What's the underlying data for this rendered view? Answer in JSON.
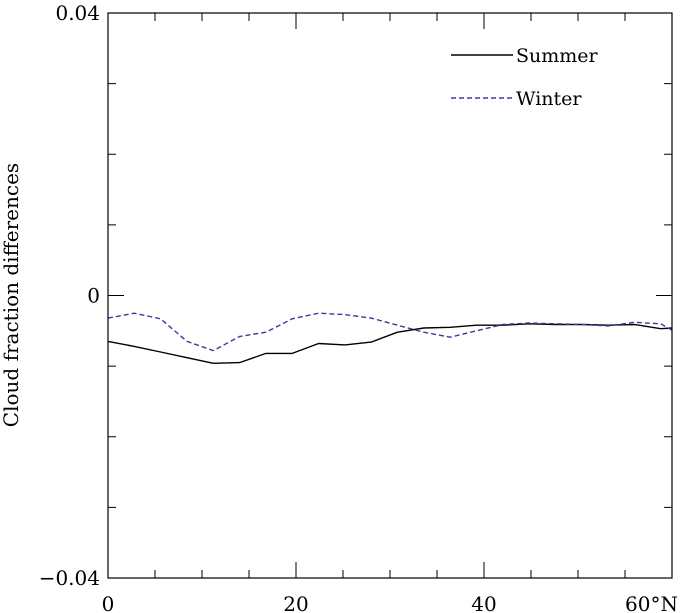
{
  "chart_data": {
    "type": "line",
    "ylabel": "Cloud fraction differences",
    "xlim": [
      0,
      60
    ],
    "ylim": [
      -0.04,
      0.04
    ],
    "x_ticks": [
      {
        "value": 0,
        "label": "0"
      },
      {
        "value": 20,
        "label": "20"
      },
      {
        "value": 40,
        "label": "40"
      },
      {
        "value": 60,
        "label": "60°N"
      }
    ],
    "y_ticks": [
      {
        "value": 0.04,
        "label": "0.04"
      },
      {
        "value": 0,
        "label": "0"
      },
      {
        "value": -0.04,
        "label": "−0.04"
      }
    ],
    "x_minor_step": 5,
    "y_minor_step": 0.01,
    "grid": false,
    "legend_position": "top-right",
    "x": [
      0,
      2.8,
      5.6,
      8.4,
      11.2,
      14.0,
      16.8,
      19.6,
      22.4,
      25.2,
      28.0,
      30.8,
      33.6,
      36.4,
      39.2,
      42.0,
      44.8,
      47.6,
      50.4,
      53.2,
      56.0,
      58.8,
      60.0
    ],
    "series": [
      {
        "name": "Summer",
        "color": "#000000",
        "dash": "solid",
        "values": [
          -0.0065,
          -0.0072,
          -0.008,
          -0.0088,
          -0.0096,
          -0.0095,
          -0.0082,
          -0.0082,
          -0.0068,
          -0.007,
          -0.0066,
          -0.0052,
          -0.0046,
          -0.0045,
          -0.0042,
          -0.0042,
          -0.004,
          -0.0041,
          -0.0041,
          -0.0042,
          -0.0041,
          -0.0047,
          -0.0046
        ]
      },
      {
        "name": "Winter",
        "color": "#3a3aa0",
        "dash": "dashed",
        "values": [
          -0.0032,
          -0.0025,
          -0.0033,
          -0.0065,
          -0.0078,
          -0.0058,
          -0.0052,
          -0.0033,
          -0.0025,
          -0.0027,
          -0.0032,
          -0.0042,
          -0.0052,
          -0.0059,
          -0.005,
          -0.0041,
          -0.0039,
          -0.004,
          -0.0041,
          -0.0043,
          -0.0038,
          -0.004,
          -0.0049
        ]
      }
    ]
  }
}
